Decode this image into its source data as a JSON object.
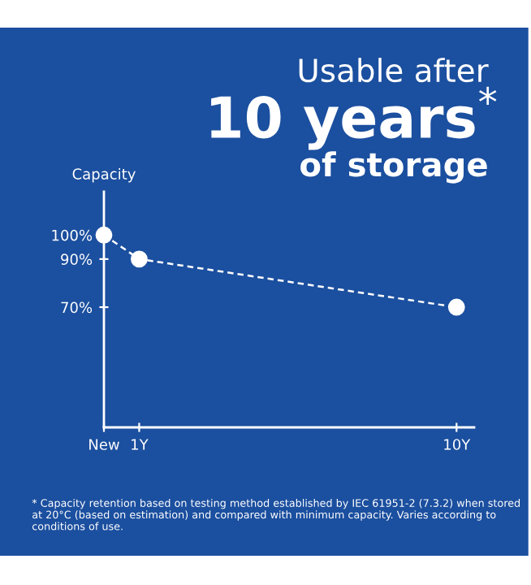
{
  "chart_data": {
    "type": "line",
    "annotations": [
      "Usable after",
      "10 years$^{*}$",
      "of storage",
      "* Capacity retention based on testing method established by IEC 61951-2 (7.3.2) when stored at 20°C (based on estimation) and compared with minimum capacity. Varies according to conditions of use."
    ],
    "ylabel": "Capacity",
    "x": [
      0,
      1,
      10
    ],
    "series": [
      {
        "color": "#ffffff",
        "values": [
          100,
          90,
          70
        ]
      }
    ],
    "xlim": [
      0,
      10.5
    ],
    "xticks": [
      {
        "value": 0,
        "label": "New"
      },
      {
        "value": 1,
        "label": "1Y"
      },
      {
        "value": 10,
        "label": "10Y"
      }
    ],
    "ylim": [
      20,
      118
    ],
    "yticks": [
      {
        "value": 100,
        "label": "100%"
      },
      {
        "value": 90,
        "label": "90%"
      },
      {
        "value": 70,
        "label": "70%"
      }
    ],
    "marker": "circle",
    "line_style": "dashed",
    "grid": false,
    "legend": false
  }
}
